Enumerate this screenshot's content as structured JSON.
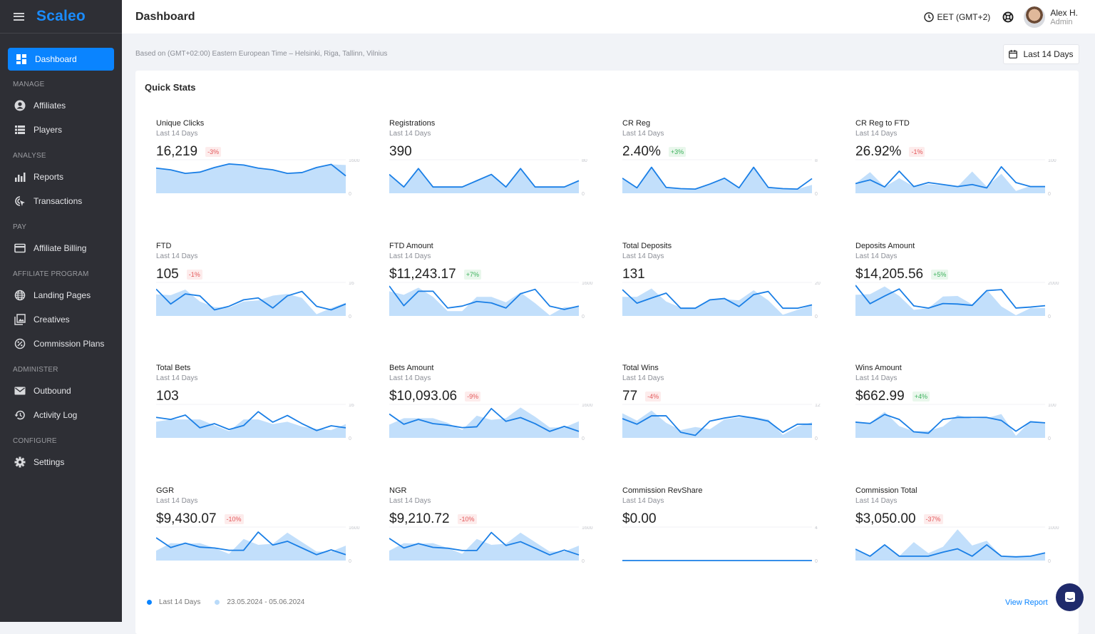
{
  "app": {
    "logo": "Scaleo"
  },
  "header": {
    "title": "Dashboard",
    "timezone": "EET (GMT+2)",
    "user_name": "Alex H.",
    "user_role": "Admin"
  },
  "sidebar": {
    "active": "Dashboard",
    "sections": [
      {
        "label": "MANAGE",
        "items": [
          {
            "label": "Affiliates",
            "icon": "account-circle-icon"
          },
          {
            "label": "Players",
            "icon": "list-icon"
          }
        ]
      },
      {
        "label": "ANALYSE",
        "items": [
          {
            "label": "Reports",
            "icon": "bar-chart-icon"
          },
          {
            "label": "Transactions",
            "icon": "cursor-click-icon"
          }
        ]
      },
      {
        "label": "PAY",
        "items": [
          {
            "label": "Affiliate Billing",
            "icon": "credit-card-icon"
          }
        ]
      },
      {
        "label": "AFFILIATE PROGRAM",
        "items": [
          {
            "label": "Landing Pages",
            "icon": "globe-icon"
          },
          {
            "label": "Creatives",
            "icon": "image-library-icon"
          },
          {
            "label": "Commission Plans",
            "icon": "percent-icon"
          }
        ]
      },
      {
        "label": "ADMINISTER",
        "items": [
          {
            "label": "Outbound",
            "icon": "mail-icon"
          },
          {
            "label": "Activity Log",
            "icon": "history-icon"
          }
        ]
      },
      {
        "label": "CONFIGURE",
        "items": [
          {
            "label": "Settings",
            "icon": "gear-icon"
          }
        ]
      }
    ]
  },
  "main": {
    "timezone_note": "Based on (GMT+02:00) Eastern European Time – Helsinki, Riga, Tallinn, Vilnius",
    "range_button": "Last 14 Days",
    "card_title": "Quick Stats",
    "legend": {
      "current": "Last 14 Days",
      "previous": "23.05.2024 - 05.06.2024"
    },
    "view_report": "View Report",
    "colors": {
      "current": "#1a7fe6",
      "previous": "#c2dffb",
      "accent": "#0a84ff"
    }
  },
  "chart_data": [
    {
      "type": "area",
      "title": "Unique Clicks",
      "subtitle": "Last 14 Days",
      "value": "16,219",
      "change": "-3%",
      "trend": "neg",
      "ylim": [
        0,
        1600
      ],
      "current": [
        1200,
        1120,
        950,
        1010,
        1230,
        1400,
        1350,
        1200,
        1120,
        950,
        990,
        1230,
        1380,
        830
      ],
      "previous": [
        1200,
        1120,
        950,
        1010,
        1230,
        1400,
        1350,
        1200,
        1120,
        950,
        990,
        1230,
        1380,
        1350
      ]
    },
    {
      "type": "area",
      "title": "Registrations",
      "subtitle": "Last 14 Days",
      "value": "390",
      "change": "",
      "trend": "",
      "ylim": [
        0,
        80
      ],
      "current": [
        45,
        15,
        59,
        15,
        15,
        15,
        30,
        45,
        15,
        59,
        15,
        15,
        15,
        30
      ],
      "previous": [
        45,
        15,
        59,
        15,
        15,
        15,
        30,
        45,
        15,
        59,
        15,
        15,
        15,
        30
      ]
    },
    {
      "type": "area",
      "title": "CR Reg",
      "subtitle": "Last 14 Days",
      "value": "2.40%",
      "change": "+3%",
      "trend": "pos",
      "ylim": [
        0,
        8
      ],
      "current": [
        3.6,
        1.3,
        6.2,
        1.4,
        1.1,
        1.0,
        2.2,
        3.6,
        1.3,
        6.2,
        1.4,
        1.1,
        1.0,
        3.5
      ],
      "previous": [
        3.6,
        1.3,
        6.2,
        1.4,
        1.1,
        1.0,
        2.2,
        3.6,
        1.3,
        6.2,
        1.4,
        1.1,
        1.0,
        2.0
      ]
    },
    {
      "type": "area",
      "title": "CR Reg to FTD",
      "subtitle": "Last 14 Days",
      "value": "26.92%",
      "change": "-1%",
      "trend": "neg",
      "ylim": [
        0,
        100
      ],
      "current": [
        29,
        40,
        19,
        66,
        20,
        32,
        26,
        20,
        26,
        16,
        79,
        32,
        20,
        20
      ],
      "previous": [
        29,
        63,
        19,
        45,
        20,
        27,
        24,
        20,
        65,
        20,
        58,
        7,
        22,
        22
      ]
    },
    {
      "type": "area",
      "title": "FTD",
      "subtitle": "Last 14 Days",
      "value": "105",
      "change": "-1%",
      "trend": "neg",
      "ylim": [
        0,
        16
      ],
      "current": [
        12.8,
        5.7,
        10.5,
        9.6,
        2.9,
        4.6,
        7.7,
        8.6,
        3.8,
        9.6,
        11.7,
        4.6,
        2.9,
        5.7
      ],
      "previous": [
        10.3,
        9.9,
        12.6,
        6.9,
        4.2,
        4,
        6.9,
        7.4,
        9.7,
        10.5,
        8.6,
        0.8,
        3.8,
        6.3
      ]
    },
    {
      "type": "area",
      "title": "FTD Amount",
      "subtitle": "Last 14 Days",
      "value": "$11,243.17",
      "change": "+7%",
      "trend": "pos",
      "ylim": [
        0,
        1600
      ],
      "current": [
        1430,
        490,
        1180,
        1180,
        380,
        470,
        690,
        620,
        380,
        1060,
        1270,
        470,
        310,
        470
      ],
      "previous": [
        1180,
        1010,
        1350,
        910,
        230,
        230,
        910,
        910,
        650,
        1120,
        610,
        30,
        420,
        420
      ]
    },
    {
      "type": "area",
      "title": "Total Deposits",
      "subtitle": "Last 14 Days",
      "value": "131",
      "change": "",
      "trend": "",
      "ylim": [
        0,
        20
      ],
      "current": [
        15.7,
        7.6,
        10.7,
        13.6,
        4.6,
        4.6,
        9.6,
        10.4,
        5.6,
        12.7,
        14.6,
        4.6,
        4.6,
        6.6
      ],
      "previous": [
        11.4,
        11.4,
        16.4,
        8.6,
        5,
        5,
        9.3,
        10,
        9.3,
        15.3,
        9.3,
        0.7,
        3.6,
        6.4
      ]
    },
    {
      "type": "area",
      "title": "Deposits Amount",
      "subtitle": "Last 14 Days",
      "value": "$14,205.56",
      "change": "+5%",
      "trend": "pos",
      "ylim": [
        0,
        2000
      ],
      "current": [
        1830,
        730,
        1190,
        1610,
        600,
        470,
        740,
        710,
        630,
        1510,
        1570,
        470,
        530,
        610
      ],
      "previous": [
        1260,
        1300,
        1760,
        1190,
        360,
        470,
        1160,
        1190,
        690,
        1570,
        570,
        40,
        470,
        470
      ]
    },
    {
      "type": "area",
      "title": "Total Bets",
      "subtitle": "Last 14 Days",
      "value": "103",
      "change": "",
      "trend": "",
      "ylim": [
        0,
        16
      ],
      "current": [
        9.8,
        8.8,
        10.9,
        4.8,
        6.8,
        4,
        5.9,
        12.5,
        7.5,
        10.7,
        6.8,
        3.5,
        5.8,
        4.8
      ],
      "previous": [
        7.7,
        8.8,
        8.8,
        8.8,
        6,
        3.2,
        8.8,
        8.8,
        6.6,
        7.7,
        5.4,
        4.3,
        3.7,
        6.6
      ]
    },
    {
      "type": "area",
      "title": "Bets Amount",
      "subtitle": "Last 14 Days",
      "value": "$10,093.06",
      "change": "-9%",
      "trend": "neg",
      "ylim": [
        0,
        1600
      ],
      "current": [
        1140,
        650,
        880,
        680,
        610,
        490,
        530,
        1400,
        790,
        970,
        680,
        310,
        550,
        310
      ],
      "previous": [
        630,
        940,
        940,
        940,
        720,
        380,
        1060,
        860,
        940,
        1450,
        1010,
        500,
        500,
        790
      ]
    },
    {
      "type": "area",
      "title": "Total Wins",
      "subtitle": "Last 14 Days",
      "value": "77",
      "change": "-4%",
      "trend": "neg",
      "ylim": [
        0,
        12
      ],
      "current": [
        6.9,
        4.9,
        7.9,
        7.9,
        2,
        0.9,
        6,
        7.1,
        7.9,
        7.1,
        6,
        2,
        4.9,
        4.9
      ],
      "previous": [
        8.8,
        6.2,
        9.8,
        5.4,
        2.8,
        3.9,
        3.1,
        6.6,
        7.3,
        7.5,
        6.6,
        1.1,
        4.1,
        5.6
      ]
    },
    {
      "type": "area",
      "title": "Wins Amount",
      "subtitle": "Last 14 Days",
      "value": "$662.99",
      "change": "+4%",
      "trend": "pos",
      "ylim": [
        0,
        100
      ],
      "current": [
        47,
        43,
        70,
        55,
        18,
        14,
        55,
        61,
        61,
        61,
        52,
        20,
        48,
        45
      ],
      "previous": [
        45,
        45,
        78,
        35,
        20,
        21,
        34,
        68,
        57,
        59,
        71,
        6,
        50,
        45
      ]
    },
    {
      "type": "area",
      "title": "GGR",
      "subtitle": "Last 14 Days",
      "value": "$9,430.07",
      "change": "-10%",
      "trend": "neg",
      "ylim": [
        0,
        1600
      ],
      "current": [
        1090,
        620,
        830,
        640,
        600,
        490,
        490,
        1360,
        740,
        920,
        600,
        280,
        510,
        280
      ],
      "previous": [
        470,
        830,
        800,
        830,
        600,
        320,
        1030,
        750,
        800,
        1330,
        880,
        430,
        430,
        710
      ]
    },
    {
      "type": "area",
      "title": "NGR",
      "subtitle": "Last 14 Days",
      "value": "$9,210.72",
      "change": "-10%",
      "trend": "neg",
      "ylim": [
        0,
        1600
      ],
      "current": [
        1060,
        600,
        810,
        630,
        590,
        480,
        480,
        1340,
        720,
        900,
        590,
        270,
        500,
        270
      ],
      "previous": [
        470,
        830,
        800,
        830,
        600,
        320,
        1030,
        750,
        800,
        1330,
        880,
        430,
        430,
        710
      ]
    },
    {
      "type": "area",
      "title": "Commission RevShare",
      "subtitle": "Last 14 Days",
      "value": "$0.00",
      "change": "",
      "trend": "",
      "ylim": [
        0,
        4
      ],
      "current": [
        0,
        0,
        0,
        0,
        0,
        0,
        0,
        0,
        0,
        0,
        0,
        0,
        0,
        0
      ],
      "previous": [
        0,
        0,
        0,
        0,
        0,
        0,
        0,
        0,
        0,
        0,
        0,
        0,
        0,
        0
      ]
    },
    {
      "type": "area",
      "title": "Commission Total",
      "subtitle": "Last 14 Days",
      "value": "$3,050.00",
      "change": "-37%",
      "trend": "neg",
      "ylim": [
        0,
        1000
      ],
      "current": [
        340,
        130,
        470,
        130,
        130,
        130,
        250,
        350,
        130,
        470,
        130,
        110,
        130,
        230
      ],
      "previous": [
        340,
        130,
        450,
        130,
        550,
        220,
        410,
        930,
        450,
        590,
        130,
        130,
        130,
        230
      ]
    }
  ]
}
